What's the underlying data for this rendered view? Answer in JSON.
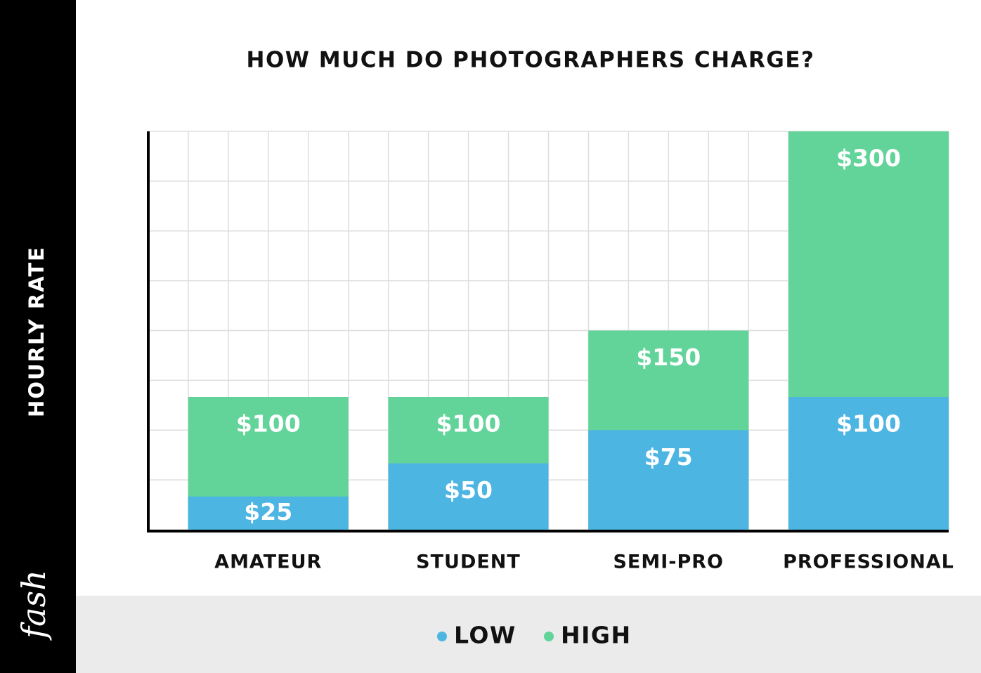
{
  "chart_data": {
    "type": "bar",
    "barmode": "overlay",
    "title": "HOW MUCH DO PHOTOGRAPHERS CHARGE?",
    "y_label": "HOURLY RATE",
    "watermark": "fash",
    "categories": [
      "AMATEUR",
      "STUDENT",
      "SEMI-PRO",
      "PROFESSIONAL"
    ],
    "series": [
      {
        "name": "LOW",
        "color": "#4db5e2",
        "values": [
          25,
          50,
          75,
          100
        ],
        "value_labels": [
          "$25",
          "$50",
          "$75",
          "$100"
        ]
      },
      {
        "name": "HIGH",
        "color": "#62d49a",
        "values": [
          100,
          100,
          150,
          300
        ],
        "value_labels": [
          "$100",
          "$100",
          "$150",
          "$300"
        ]
      }
    ],
    "ylim": [
      0,
      300
    ],
    "yticks": [
      0,
      37.5,
      75,
      112.5,
      150,
      187.5,
      225,
      262.5,
      300
    ],
    "grid": true,
    "legend": "bottom"
  }
}
